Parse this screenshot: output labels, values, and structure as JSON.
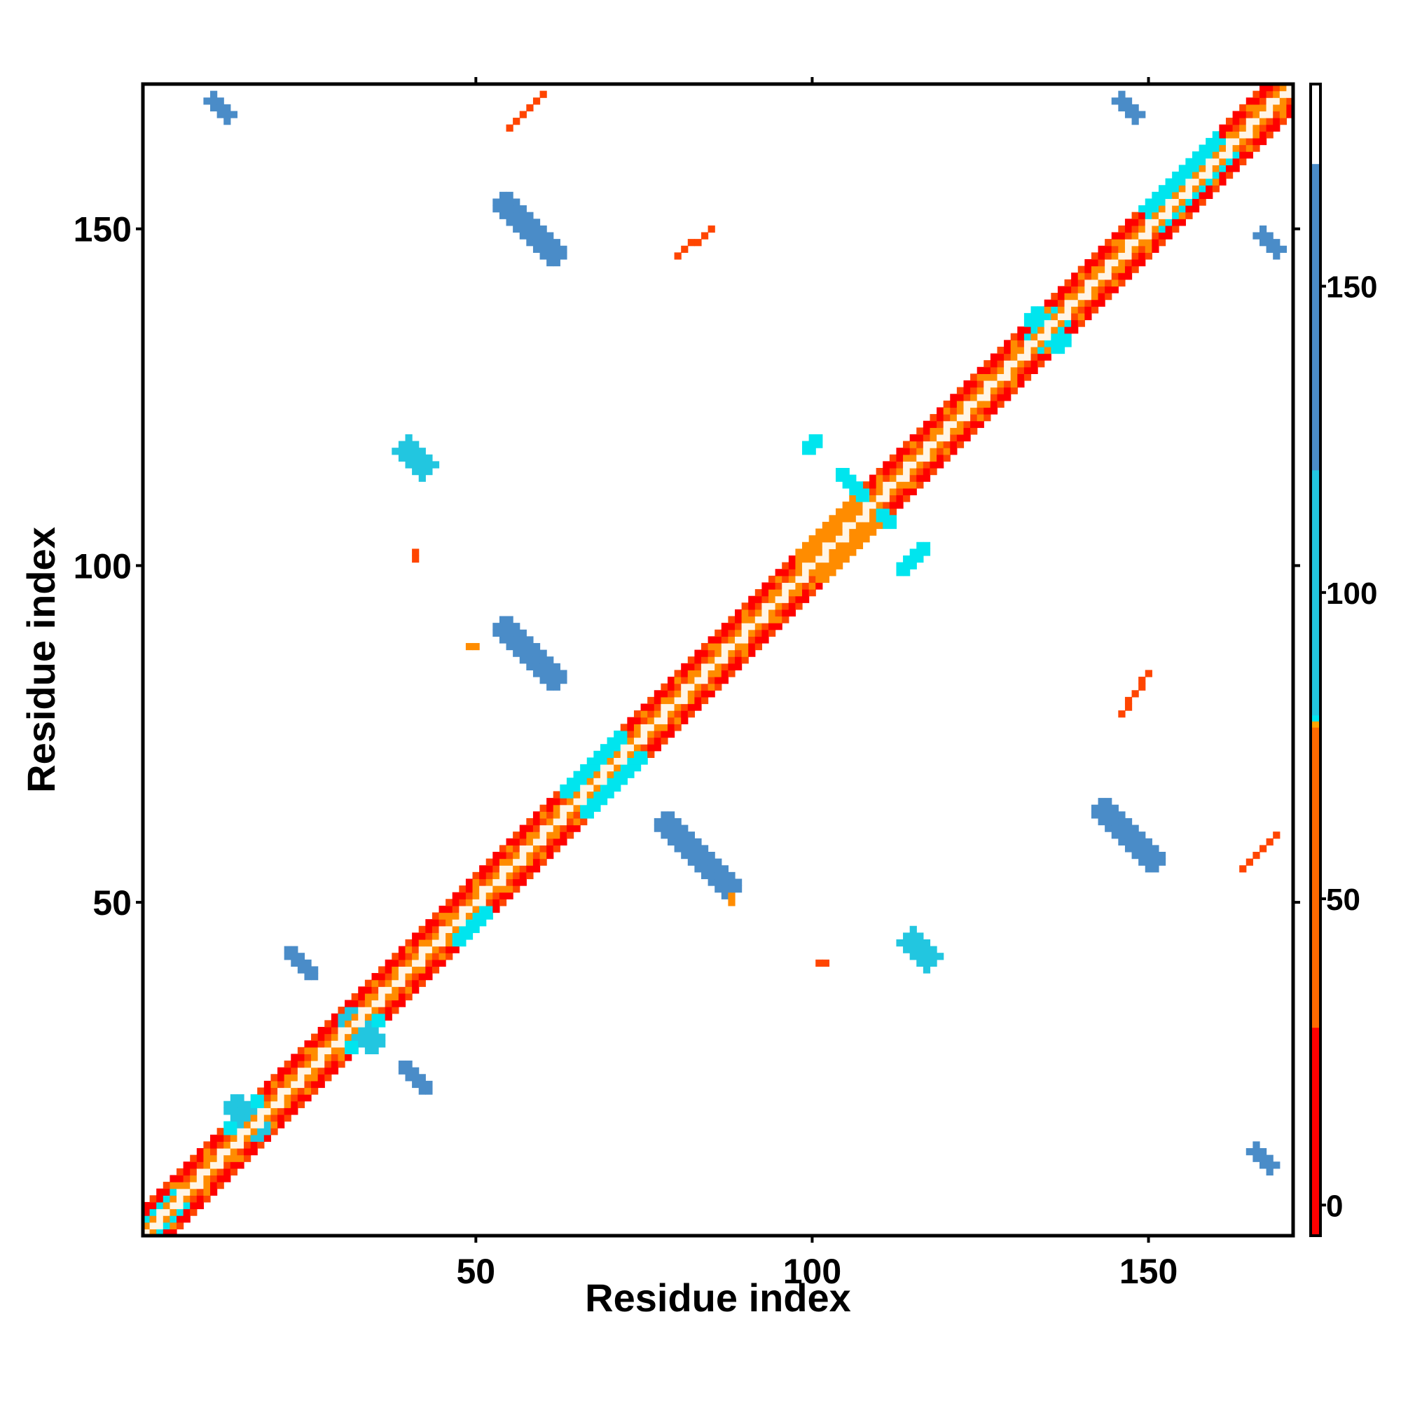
{
  "chart_data": {
    "type": "heatmap",
    "title": "",
    "xlabel": "Residue index",
    "ylabel": "Residue index",
    "xlim": [
      1,
      171
    ],
    "ylim": [
      1,
      171
    ],
    "x_ticks": [
      50,
      100,
      150
    ],
    "y_ticks": [
      50,
      100,
      150
    ],
    "grid": false,
    "colorbar": {
      "ticks": [
        0,
        50,
        100,
        150
      ],
      "range": [
        -5,
        183
      ],
      "bands": [
        {
          "from": -5,
          "to": 29,
          "color": "#ff0000"
        },
        {
          "from": 29,
          "to": 78,
          "color": "#ff6a00"
        },
        {
          "from": 78,
          "to": 79,
          "color": "#ffa500"
        },
        {
          "from": 79,
          "to": 80,
          "color": "#00e5ee"
        },
        {
          "from": 80,
          "to": 120,
          "color": "#22c6e0"
        },
        {
          "from": 120,
          "to": 170,
          "color": "#4a8cc8"
        },
        {
          "from": 170,
          "to": 183,
          "color": "#ffffff"
        }
      ]
    },
    "colors": {
      "red": "#ff0000",
      "red_orange": "#ff4500",
      "orange": "#ff8c00",
      "cyan": "#00e5ee",
      "sky_blue": "#22c6e0",
      "steel_blue": "#4a8cc8",
      "light_cream": "#fff5e6"
    },
    "diagonal_band": {
      "start": 1,
      "end": 171,
      "half_width": 4
    },
    "blobs": [
      {
        "name": "helix-1",
        "center": [
          4,
          4
        ],
        "half_length": 3,
        "half_width": 2,
        "direction": "diagonal",
        "color": "cyan"
      },
      {
        "name": "x-20-a",
        "center": [
          16,
          18
        ],
        "half_length": 4,
        "half_width": 1.5,
        "direction": "diagonal",
        "color": "cyan"
      },
      {
        "name": "x-20-b",
        "center": [
          16,
          18
        ],
        "half_length": 4,
        "half_width": 1.5,
        "direction": "antidiagonal",
        "color": "sky_blue"
      },
      {
        "name": "x-32-a",
        "center": [
          33,
          31
        ],
        "half_length": 4,
        "half_width": 1.5,
        "direction": "diagonal",
        "color": "cyan"
      },
      {
        "name": "x-32-b",
        "center": [
          33,
          31
        ],
        "half_length": 4,
        "half_width": 1.5,
        "direction": "antidiagonal",
        "color": "sky_blue"
      },
      {
        "name": "hairpin-25-40",
        "center": [
          24,
          41
        ],
        "half_length": 3.5,
        "half_width": 1.3,
        "direction": "antidiagonal",
        "color": "steel_blue"
      },
      {
        "name": "hairpin-40-25",
        "center": [
          41,
          24
        ],
        "half_length": 3.5,
        "half_width": 1.3,
        "direction": "antidiagonal",
        "color": "steel_blue"
      },
      {
        "name": "diag-patch-48",
        "center": [
          49,
          47
        ],
        "half_length": 4,
        "half_width": 2,
        "direction": "diagonal",
        "color": "cyan"
      },
      {
        "name": "strand-55-85",
        "center": [
          58,
          87
        ],
        "half_length": 7,
        "half_width": 2,
        "direction": "antidiagonal",
        "color": "steel_blue"
      },
      {
        "name": "strand-85-55",
        "center": [
          83,
          57
        ],
        "half_length": 8,
        "half_width": 2,
        "direction": "antidiagonal",
        "color": "steel_blue"
      },
      {
        "name": "diag-patch-70",
        "center": [
          69,
          69
        ],
        "half_length": 7,
        "half_width": 3,
        "direction": "diagonal",
        "color": "cyan"
      },
      {
        "name": "strand-40-117",
        "center": [
          41,
          116
        ],
        "half_length": 3.5,
        "half_width": 1.5,
        "direction": "antidiagonal",
        "color": "sky_blue"
      },
      {
        "name": "helix-100-block",
        "center": [
          104,
          104
        ],
        "half_length": 7,
        "half_width": 3.5,
        "direction": "diagonal",
        "color": "orange"
      },
      {
        "name": "x-110-a",
        "center": [
          108,
          110
        ],
        "half_length": 6,
        "half_width": 1.3,
        "direction": "antidiagonal",
        "color": "cyan"
      },
      {
        "name": "x-110-b",
        "center": [
          115,
          101
        ],
        "half_length": 3,
        "half_width": 1.3,
        "direction": "diagonal",
        "color": "cyan"
      },
      {
        "name": "x-110-c",
        "center": [
          100,
          118
        ],
        "half_length": 2,
        "half_width": 1.2,
        "direction": "diagonal",
        "color": "cyan"
      },
      {
        "name": "strand-115-43",
        "center": [
          116,
          43
        ],
        "half_length": 3.5,
        "half_width": 1.5,
        "direction": "antidiagonal",
        "color": "sky_blue"
      },
      {
        "name": "x-135-a",
        "center": [
          135,
          135
        ],
        "half_length": 4,
        "half_width": 1.5,
        "direction": "diagonal",
        "color": "cyan"
      },
      {
        "name": "x-135-b",
        "center": [
          135,
          135
        ],
        "half_length": 4,
        "half_width": 1.5,
        "direction": "antidiagonal",
        "color": "cyan"
      },
      {
        "name": "diag-patch-155",
        "center": [
          156,
          157
        ],
        "half_length": 8,
        "half_width": 2.5,
        "direction": "diagonal",
        "color": "cyan"
      },
      {
        "name": "strand-58-150",
        "center": [
          58,
          150
        ],
        "half_length": 7,
        "half_width": 2,
        "direction": "antidiagonal",
        "color": "steel_blue"
      },
      {
        "name": "strand-147-60",
        "center": [
          147,
          60
        ],
        "half_length": 7,
        "half_width": 2,
        "direction": "antidiagonal",
        "color": "steel_blue"
      },
      {
        "name": "strand-12-168",
        "center": [
          12,
          168
        ],
        "half_length": 2.5,
        "half_width": 1.3,
        "direction": "antidiagonal",
        "color": "steel_blue"
      },
      {
        "name": "strand-167-12",
        "center": [
          167,
          12
        ],
        "half_length": 2.5,
        "half_width": 1.3,
        "direction": "antidiagonal",
        "color": "steel_blue"
      },
      {
        "name": "dots-148-170",
        "center": [
          147,
          168
        ],
        "half_length": 2.5,
        "half_width": 0.8,
        "direction": "antidiagonal",
        "color": "steel_blue"
      },
      {
        "name": "dots-170-148",
        "center": [
          168,
          148
        ],
        "half_length": 2.5,
        "half_width": 0.8,
        "direction": "antidiagonal",
        "color": "steel_blue"
      }
    ],
    "streaks": [
      {
        "name": "streak-57-168",
        "from": [
          55,
          165
        ],
        "to": [
          60,
          170
        ],
        "color": "red_orange"
      },
      {
        "name": "streak-82-149",
        "from": [
          80,
          146
        ],
        "to": [
          85,
          150
        ],
        "color": "red_orange"
      },
      {
        "name": "streak-147-83",
        "from": [
          146,
          78
        ],
        "to": [
          150,
          84
        ],
        "color": "red_orange"
      },
      {
        "name": "streak-165-58",
        "from": [
          164,
          55
        ],
        "to": [
          169,
          60
        ],
        "color": "red_orange"
      },
      {
        "name": "dot-41-101",
        "from": [
          41,
          101
        ],
        "to": [
          41,
          102
        ],
        "color": "red_orange"
      },
      {
        "name": "dot-102-41",
        "from": [
          101,
          41
        ],
        "to": [
          102,
          41
        ],
        "color": "red_orange"
      },
      {
        "name": "dot-49-88",
        "from": [
          49,
          88
        ],
        "to": [
          50,
          88
        ],
        "color": "orange"
      },
      {
        "name": "dot-88-50",
        "from": [
          88,
          50
        ],
        "to": [
          88,
          51
        ],
        "color": "orange"
      }
    ]
  }
}
